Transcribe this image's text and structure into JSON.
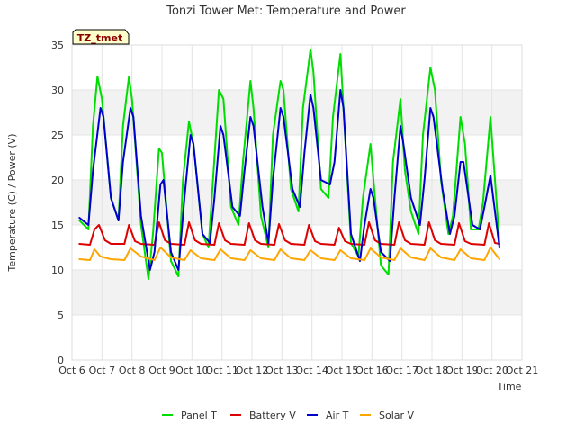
{
  "chart_data": {
    "type": "line",
    "title": "Tonzi Tower Met: Temperature and Power",
    "xlabel": "Time",
    "ylabel": "Temperature (C) / Power (V)",
    "ylim": [
      0,
      35
    ],
    "yticks": [
      0,
      5,
      10,
      15,
      20,
      25,
      30,
      35
    ],
    "xlim": [
      6,
      21
    ],
    "xticks": [
      6,
      7,
      8,
      9,
      10,
      11,
      12,
      13,
      14,
      15,
      16,
      17,
      18,
      19,
      20,
      21
    ],
    "xtick_labels": [
      "Oct 6",
      "Oct 7",
      "Oct 8",
      "Oct 9",
      "Oct 10",
      "Oct 11",
      "Oct 12",
      "Oct 13",
      "Oct 14",
      "Oct 15",
      "Oct 16",
      "Oct 17",
      "Oct 18",
      "Oct 19",
      "Oct 20",
      "Oct 21"
    ],
    "badge": "TZ_tmet",
    "series": [
      {
        "name": "Panel T",
        "color": "#00dd00",
        "x": [
          6.25,
          6.55,
          6.7,
          6.85,
          7.0,
          7.3,
          7.55,
          7.7,
          7.9,
          8.0,
          8.3,
          8.55,
          8.7,
          8.9,
          9.0,
          9.3,
          9.55,
          9.7,
          9.9,
          10.05,
          10.35,
          10.55,
          10.7,
          10.9,
          11.05,
          11.3,
          11.55,
          11.7,
          11.95,
          12.05,
          12.3,
          12.55,
          12.7,
          12.95,
          13.05,
          13.3,
          13.55,
          13.7,
          13.95,
          14.05,
          14.3,
          14.55,
          14.7,
          14.95,
          15.05,
          15.3,
          15.55,
          15.7,
          15.95,
          16.1,
          16.3,
          16.55,
          16.7,
          16.95,
          17.1,
          17.3,
          17.55,
          17.7,
          17.95,
          18.1,
          18.3,
          18.55,
          18.7,
          18.95,
          19.1,
          19.3,
          19.55,
          19.7,
          19.95,
          20.25
        ],
        "y": [
          15.5,
          14.5,
          26.0,
          31.5,
          29.0,
          18.0,
          15.5,
          26.0,
          31.5,
          29.0,
          15.0,
          9.0,
          14.0,
          23.5,
          23.0,
          11.0,
          9.3,
          20.0,
          26.5,
          24.0,
          14.0,
          12.5,
          20.0,
          30.0,
          29.0,
          17.0,
          15.0,
          22.0,
          31.0,
          28.0,
          16.0,
          12.5,
          25.0,
          31.0,
          30.0,
          19.0,
          16.5,
          28.0,
          34.5,
          32.0,
          19.0,
          18.0,
          27.0,
          34.0,
          28.0,
          13.0,
          11.5,
          18.0,
          24.0,
          18.0,
          10.5,
          9.5,
          22.0,
          29.0,
          21.0,
          16.5,
          14.0,
          25.0,
          32.5,
          30.0,
          20.0,
          14.0,
          16.0,
          27.0,
          24.0,
          14.5,
          14.5,
          17.5,
          27.0,
          13.0
        ]
      },
      {
        "name": "Battery V",
        "color": "#dd0000",
        "x": [
          6.25,
          6.6,
          6.75,
          6.9,
          7.1,
          7.3,
          7.75,
          7.9,
          8.1,
          8.3,
          8.75,
          8.9,
          9.1,
          9.3,
          9.75,
          9.9,
          10.1,
          10.3,
          10.75,
          10.9,
          11.1,
          11.3,
          11.75,
          11.9,
          12.1,
          12.3,
          12.75,
          12.9,
          13.1,
          13.3,
          13.75,
          13.9,
          14.1,
          14.3,
          14.75,
          14.9,
          15.1,
          15.3,
          15.75,
          15.9,
          16.1,
          16.3,
          16.75,
          16.9,
          17.1,
          17.3,
          17.75,
          17.9,
          18.1,
          18.3,
          18.75,
          18.9,
          19.1,
          19.3,
          19.75,
          19.9,
          20.1,
          20.25
        ],
        "y": [
          12.9,
          12.8,
          14.5,
          15.0,
          13.3,
          12.9,
          12.9,
          15.0,
          13.2,
          12.9,
          12.8,
          15.3,
          13.3,
          12.9,
          12.8,
          15.3,
          13.3,
          12.9,
          12.8,
          15.2,
          13.3,
          12.9,
          12.8,
          15.2,
          13.3,
          12.9,
          12.8,
          15.1,
          13.3,
          12.9,
          12.8,
          15.0,
          13.2,
          12.9,
          12.8,
          14.7,
          13.2,
          12.9,
          12.8,
          15.3,
          13.3,
          12.9,
          12.8,
          15.3,
          13.3,
          12.9,
          12.8,
          15.3,
          13.3,
          12.9,
          12.8,
          15.2,
          13.2,
          12.9,
          12.8,
          15.2,
          13.0,
          12.9
        ]
      },
      {
        "name": "Air T",
        "color": "#0000cc",
        "x": [
          6.25,
          6.55,
          6.7,
          6.95,
          7.05,
          7.3,
          7.55,
          7.7,
          7.95,
          8.05,
          8.3,
          8.6,
          8.75,
          8.95,
          9.05,
          9.3,
          9.55,
          9.75,
          9.95,
          10.05,
          10.35,
          10.6,
          10.75,
          10.95,
          11.05,
          11.35,
          11.6,
          11.75,
          11.95,
          12.05,
          12.35,
          12.55,
          12.7,
          12.95,
          13.05,
          13.35,
          13.6,
          13.75,
          13.95,
          14.05,
          14.3,
          14.6,
          14.75,
          14.95,
          15.05,
          15.3,
          15.6,
          15.75,
          15.95,
          16.05,
          16.3,
          16.6,
          16.75,
          16.95,
          17.05,
          17.3,
          17.6,
          17.75,
          17.95,
          18.05,
          18.35,
          18.6,
          18.75,
          18.95,
          19.05,
          19.35,
          19.6,
          19.75,
          19.95,
          20.25
        ],
        "y": [
          15.8,
          15.0,
          21.0,
          28.0,
          27.0,
          18.0,
          15.5,
          22.0,
          28.0,
          27.0,
          16.0,
          10.0,
          12.0,
          19.5,
          20.0,
          12.0,
          10.0,
          18.0,
          25.0,
          24.0,
          14.0,
          13.0,
          18.0,
          26.0,
          25.0,
          17.0,
          16.0,
          21.0,
          27.0,
          26.0,
          17.0,
          13.0,
          20.0,
          28.0,
          27.0,
          19.0,
          17.0,
          23.0,
          29.5,
          28.0,
          20.0,
          19.5,
          22.0,
          30.0,
          28.0,
          14.0,
          11.0,
          15.0,
          19.0,
          18.0,
          12.0,
          11.0,
          18.0,
          26.0,
          24.0,
          18.0,
          15.0,
          20.0,
          28.0,
          27.0,
          19.0,
          14.0,
          16.0,
          22.0,
          22.0,
          15.0,
          14.5,
          17.0,
          20.5,
          12.5
        ]
      },
      {
        "name": "Solar V",
        "color": "#ffa500",
        "x": [
          6.25,
          6.6,
          6.75,
          6.95,
          7.3,
          7.75,
          7.95,
          8.3,
          8.75,
          8.95,
          9.3,
          9.75,
          9.95,
          10.3,
          10.75,
          10.95,
          11.3,
          11.75,
          11.95,
          12.3,
          12.75,
          12.95,
          13.3,
          13.75,
          13.95,
          14.3,
          14.75,
          14.95,
          15.3,
          15.75,
          15.95,
          16.3,
          16.75,
          16.95,
          17.3,
          17.75,
          17.95,
          18.3,
          18.75,
          18.95,
          19.3,
          19.75,
          19.95,
          20.25
        ],
        "y": [
          11.2,
          11.1,
          12.3,
          11.5,
          11.2,
          11.1,
          12.4,
          11.5,
          11.1,
          12.5,
          11.4,
          11.1,
          12.2,
          11.3,
          11.1,
          12.3,
          11.3,
          11.1,
          12.2,
          11.3,
          11.1,
          12.3,
          11.3,
          11.1,
          12.2,
          11.3,
          11.1,
          12.2,
          11.3,
          11.1,
          12.4,
          11.4,
          11.1,
          12.4,
          11.4,
          11.1,
          12.4,
          11.4,
          11.1,
          12.3,
          11.3,
          11.1,
          12.5,
          11.2
        ]
      }
    ]
  }
}
